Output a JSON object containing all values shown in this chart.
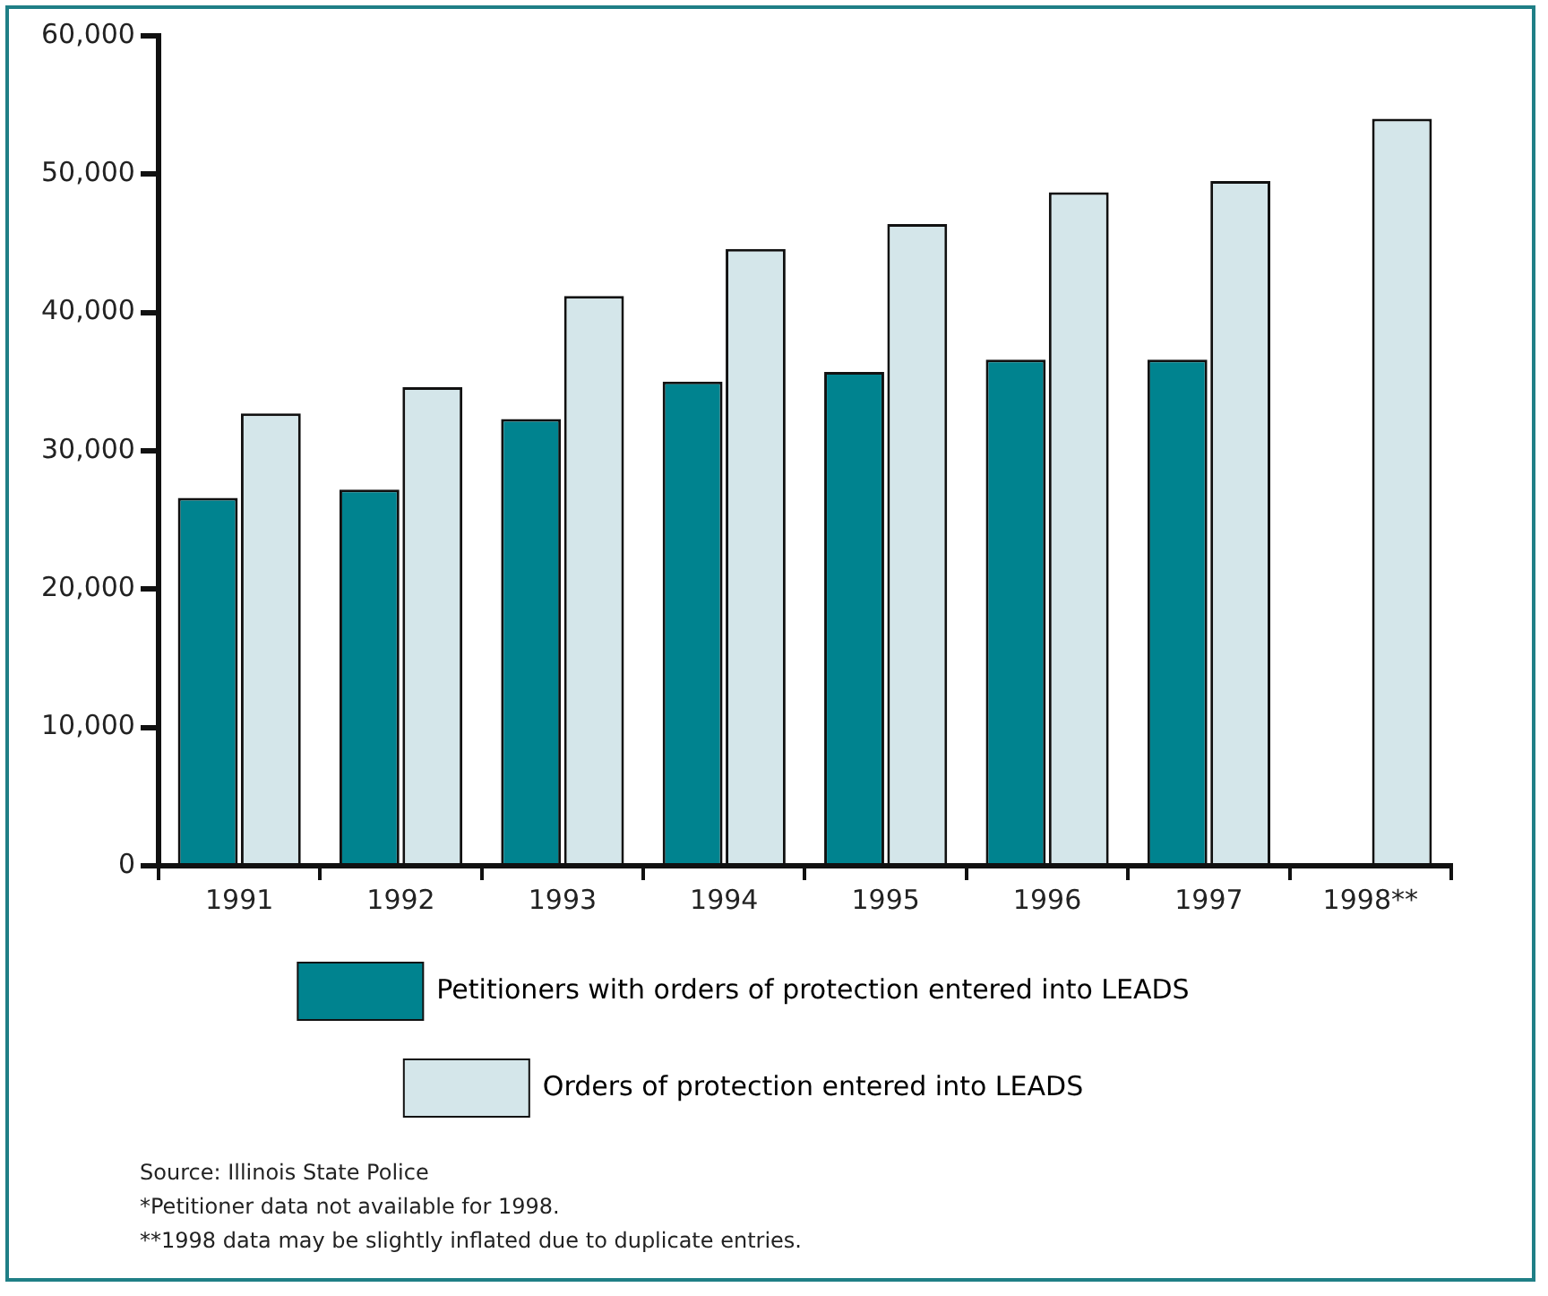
{
  "chart_data": {
    "type": "bar",
    "categories": [
      "1991",
      "1992",
      "1993",
      "1994",
      "1995",
      "1996",
      "1997",
      "1998**"
    ],
    "series": [
      {
        "name": "Petitioners with orders of protection entered into LEADS",
        "color": "#00838f",
        "values": [
          26600,
          27200,
          32300,
          35000,
          35700,
          36600,
          36600,
          null
        ]
      },
      {
        "name": "Orders of protection entered into LEADS",
        "color": "#d4e6ea",
        "values": [
          32700,
          34600,
          41200,
          44600,
          46400,
          48700,
          49500,
          54000
        ]
      }
    ],
    "ylim": [
      0,
      60000
    ],
    "yticks": [
      {
        "value": 0,
        "label": "0"
      },
      {
        "value": 10000,
        "label": "10,000"
      },
      {
        "value": 20000,
        "label": "20,000"
      },
      {
        "value": 30000,
        "label": "30,000"
      },
      {
        "value": 40000,
        "label": "40,000"
      },
      {
        "value": 50000,
        "label": "50,000"
      },
      {
        "value": 60000,
        "label": "60,000"
      }
    ],
    "grid": false,
    "legend": "bottom",
    "annotations": [
      "Source: Illinois State Police",
      "*Petitioner data not available for 1998.",
      "**1998 data may be slightly inflated due to duplicate entries."
    ]
  }
}
